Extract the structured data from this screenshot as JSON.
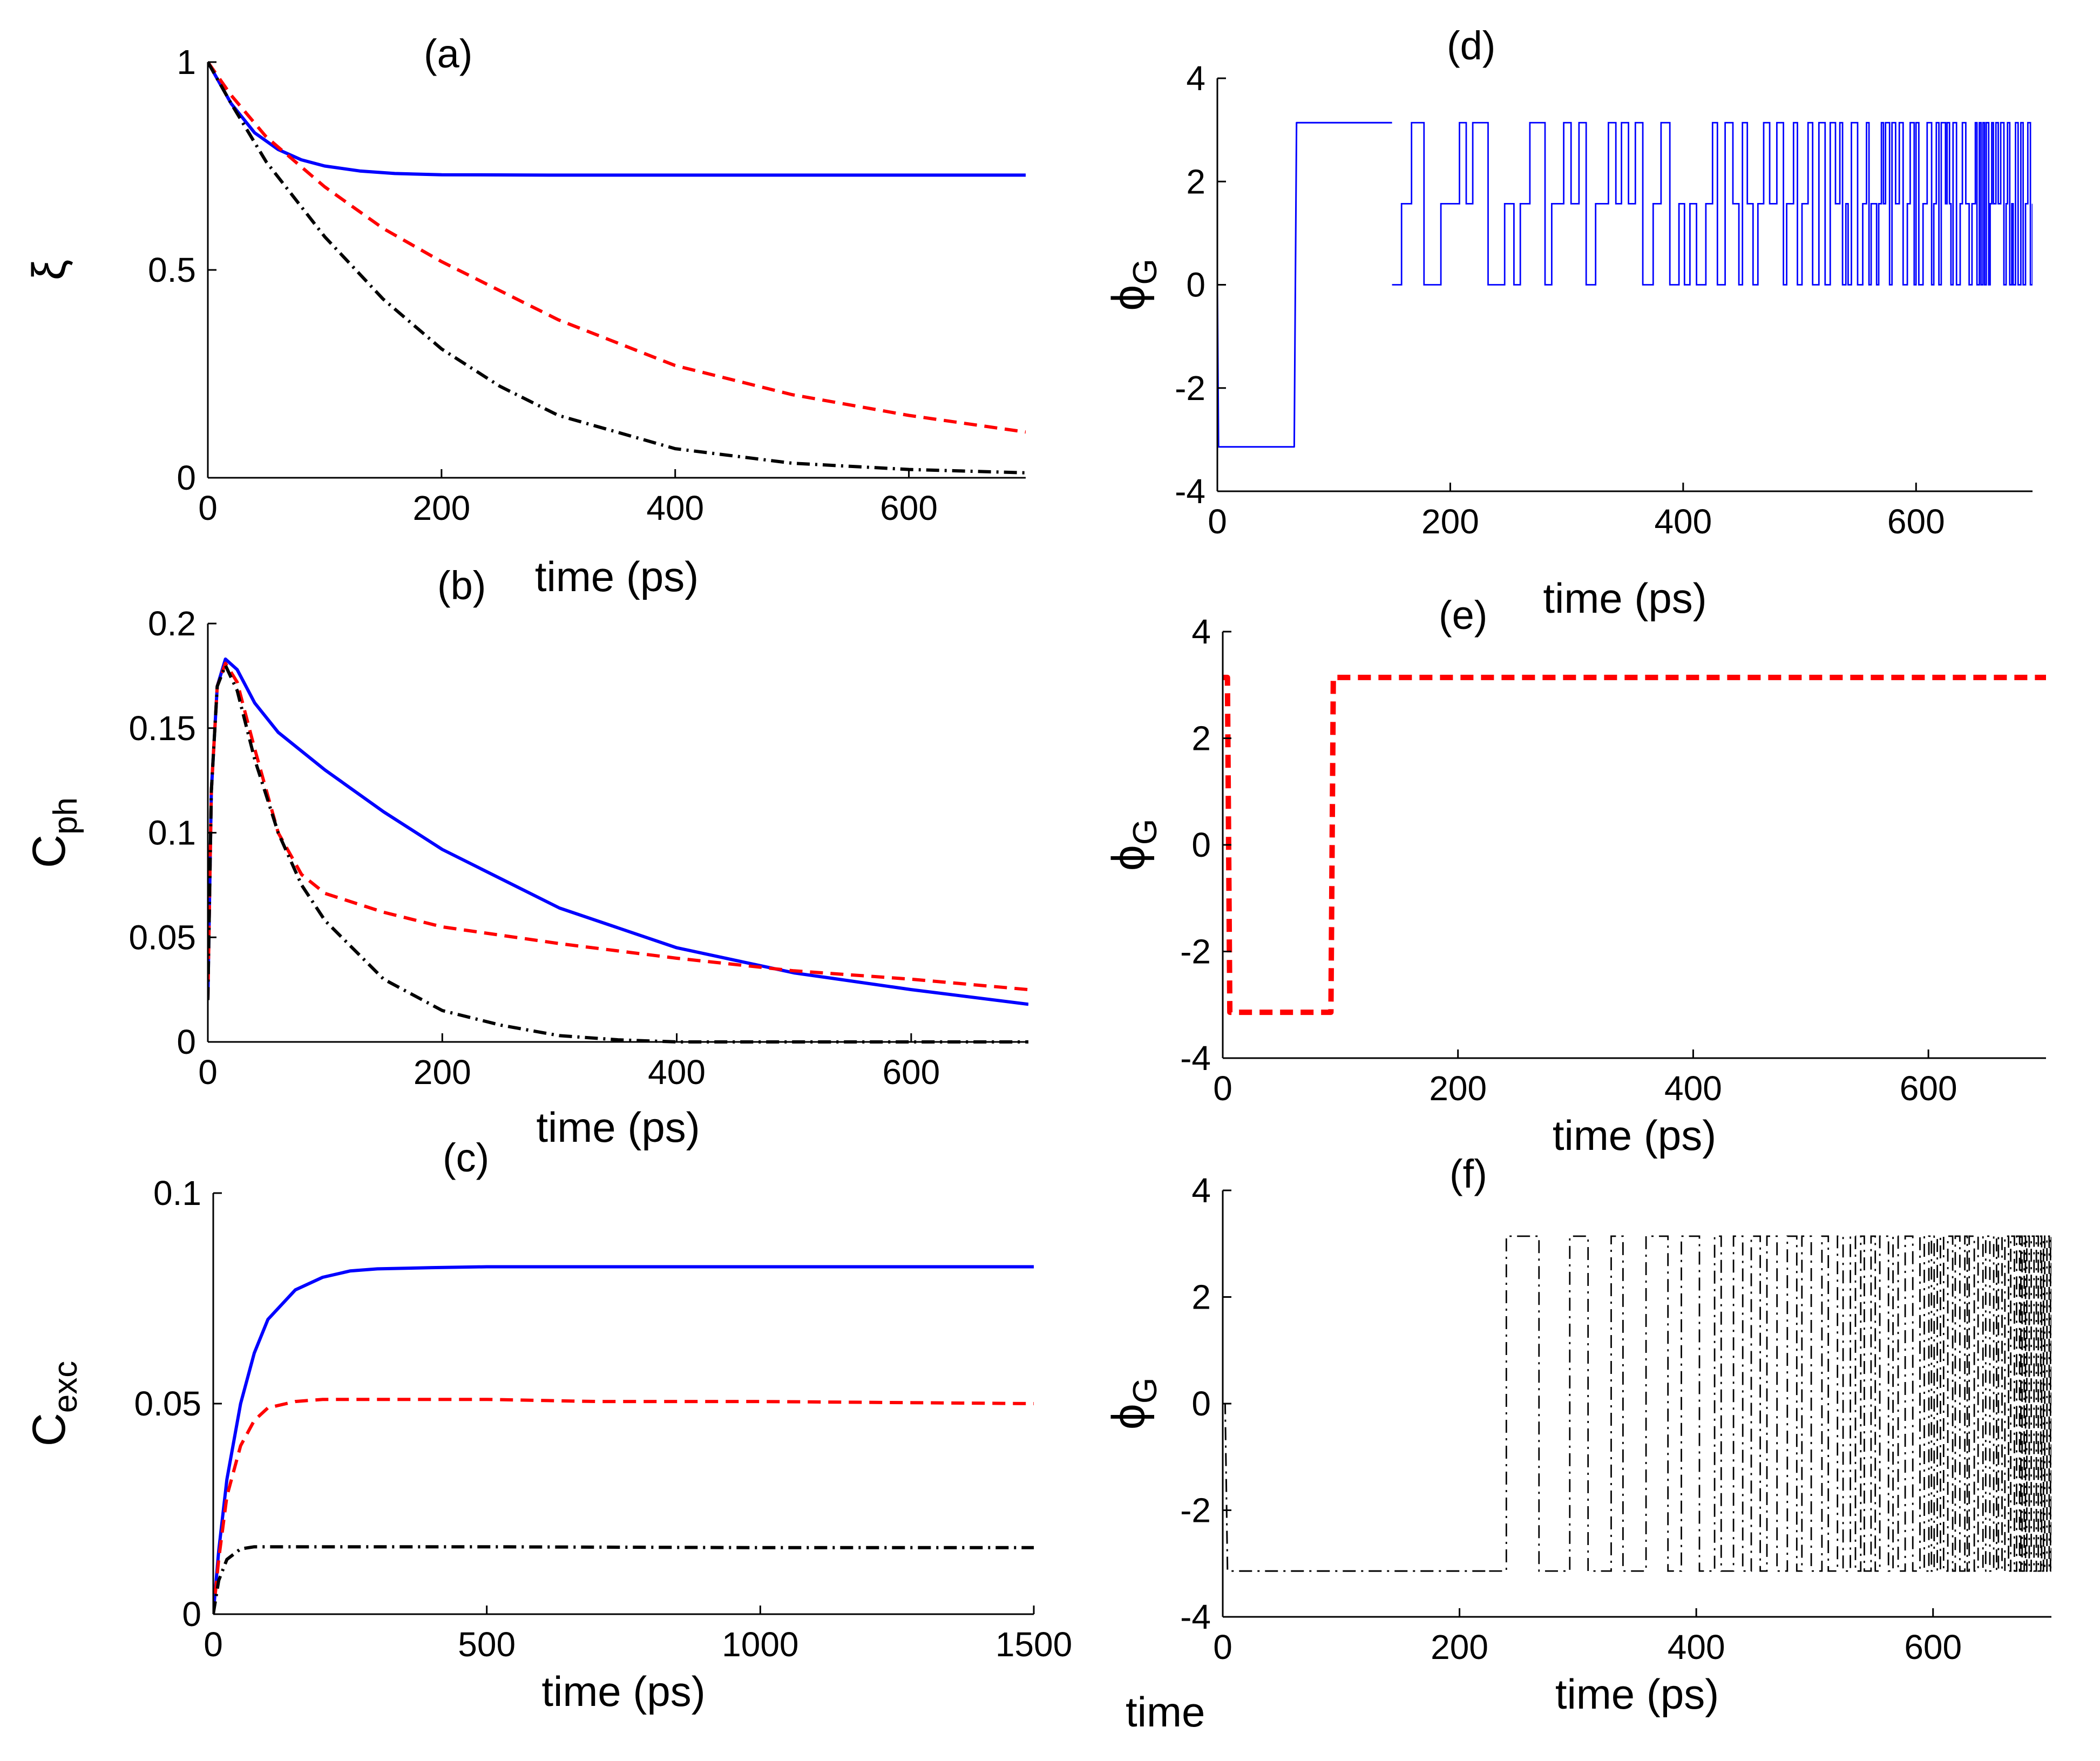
{
  "figure": {
    "stray_label": "time"
  },
  "chart_data": [
    {
      "id": "a",
      "type": "line",
      "panel_label": "(a)",
      "xlabel": "time (ps)",
      "ylabel": "ξ",
      "ylabel_sub": "",
      "xlim": [
        0,
        700
      ],
      "ylim": [
        0,
        1
      ],
      "xticks": [
        0,
        200,
        400,
        600
      ],
      "yticks": [
        0,
        0.5,
        1
      ],
      "xtick_labels": [
        "0",
        "200",
        "400",
        "600"
      ],
      "ytick_labels": [
        "0",
        "0.5",
        "1"
      ],
      "series": [
        {
          "name": "blue-solid",
          "color": "#0000ff",
          "style": "solid",
          "width": 2.4,
          "x": [
            0,
            20,
            40,
            60,
            80,
            100,
            130,
            160,
            200,
            300,
            400,
            500,
            600,
            700
          ],
          "y": [
            1,
            0.9,
            0.83,
            0.79,
            0.765,
            0.75,
            0.738,
            0.732,
            0.729,
            0.728,
            0.728,
            0.728,
            0.728,
            0.728
          ]
        },
        {
          "name": "red-dashed",
          "color": "#ff0000",
          "style": "dashed",
          "width": 2.4,
          "x": [
            0,
            20,
            50,
            100,
            150,
            200,
            300,
            400,
            500,
            600,
            700
          ],
          "y": [
            1,
            0.92,
            0.82,
            0.7,
            0.6,
            0.52,
            0.38,
            0.27,
            0.2,
            0.15,
            0.11
          ]
        },
        {
          "name": "black-dashdot",
          "color": "#000000",
          "style": "dashdot",
          "width": 2.4,
          "x": [
            0,
            20,
            50,
            100,
            150,
            200,
            250,
            300,
            400,
            500,
            600,
            700
          ],
          "y": [
            1,
            0.9,
            0.76,
            0.58,
            0.43,
            0.31,
            0.22,
            0.15,
            0.07,
            0.035,
            0.02,
            0.012
          ]
        }
      ]
    },
    {
      "id": "b",
      "type": "line",
      "panel_label": "(b)",
      "xlabel": "time (ps)",
      "ylabel": "C",
      "ylabel_sub": "ph",
      "xlim": [
        0,
        700
      ],
      "ylim": [
        0,
        0.2
      ],
      "xticks": [
        0,
        200,
        400,
        600
      ],
      "yticks": [
        0,
        0.05,
        0.1,
        0.15,
        0.2
      ],
      "xtick_labels": [
        "0",
        "200",
        "400",
        "600"
      ],
      "ytick_labels": [
        "0",
        "0.05",
        "0.1",
        "0.15",
        "0.2"
      ],
      "series": [
        {
          "name": "blue-solid",
          "color": "#0000ff",
          "style": "solid",
          "width": 2.4,
          "x": [
            0,
            3,
            8,
            15,
            25,
            40,
            60,
            100,
            150,
            200,
            300,
            400,
            500,
            600,
            700
          ],
          "y": [
            0.02,
            0.12,
            0.17,
            0.183,
            0.178,
            0.162,
            0.148,
            0.13,
            0.11,
            0.092,
            0.064,
            0.045,
            0.033,
            0.025,
            0.018
          ]
        },
        {
          "name": "red-dashed",
          "color": "#ff0000",
          "style": "dashed",
          "width": 2.4,
          "x": [
            0,
            3,
            8,
            15,
            25,
            40,
            60,
            80,
            100,
            150,
            200,
            300,
            400,
            500,
            600,
            700
          ],
          "y": [
            0.02,
            0.12,
            0.17,
            0.181,
            0.172,
            0.14,
            0.1,
            0.08,
            0.071,
            0.062,
            0.055,
            0.047,
            0.04,
            0.034,
            0.03,
            0.025
          ]
        },
        {
          "name": "black-dashdot",
          "color": "#000000",
          "style": "dashdot",
          "width": 2.4,
          "x": [
            0,
            3,
            8,
            15,
            25,
            40,
            60,
            80,
            100,
            150,
            200,
            250,
            300,
            350,
            400,
            500,
            600,
            700
          ],
          "y": [
            0.02,
            0.12,
            0.17,
            0.18,
            0.168,
            0.135,
            0.1,
            0.075,
            0.058,
            0.03,
            0.015,
            0.008,
            0.003,
            0.001,
            0,
            0,
            0,
            0
          ]
        }
      ]
    },
    {
      "id": "c",
      "type": "line",
      "panel_label": "(c)",
      "xlabel": "time (ps)",
      "ylabel": "C",
      "ylabel_sub": "exc",
      "xlim": [
        0,
        1500
      ],
      "ylim": [
        0,
        0.1
      ],
      "xticks": [
        0,
        500,
        1000,
        1500
      ],
      "yticks": [
        0,
        0.05,
        0.1
      ],
      "xtick_labels": [
        "0",
        "500",
        "1000",
        "1500"
      ],
      "ytick_labels": [
        "0",
        "0.05",
        "0.1"
      ],
      "series": [
        {
          "name": "blue-solid",
          "color": "#0000ff",
          "style": "solid",
          "width": 2.4,
          "x": [
            0,
            10,
            25,
            50,
            75,
            100,
            150,
            200,
            250,
            300,
            400,
            500,
            700,
            1000,
            1500
          ],
          "y": [
            0,
            0.015,
            0.032,
            0.05,
            0.062,
            0.07,
            0.077,
            0.08,
            0.0815,
            0.082,
            0.0823,
            0.0825,
            0.0825,
            0.0825,
            0.0825
          ]
        },
        {
          "name": "red-dashed",
          "color": "#ff0000",
          "style": "dashed",
          "width": 2.4,
          "x": [
            0,
            10,
            25,
            50,
            75,
            100,
            150,
            200,
            300,
            500,
            700,
            1000,
            1500
          ],
          "y": [
            0,
            0.013,
            0.028,
            0.04,
            0.046,
            0.049,
            0.0505,
            0.051,
            0.051,
            0.051,
            0.0505,
            0.0505,
            0.05
          ]
        },
        {
          "name": "black-dashdot",
          "color": "#000000",
          "style": "dashdot",
          "width": 2.4,
          "x": [
            0,
            10,
            25,
            50,
            75,
            100,
            200,
            500,
            1000,
            1500
          ],
          "y": [
            0,
            0.008,
            0.013,
            0.0155,
            0.016,
            0.016,
            0.016,
            0.016,
            0.0158,
            0.0158
          ]
        }
      ]
    },
    {
      "id": "d",
      "type": "line",
      "panel_label": "(d)",
      "xlabel": "time (ps)",
      "ylabel": "ϕ",
      "ylabel_sub": "G",
      "xlim": [
        0,
        700
      ],
      "ylim": [
        -4,
        4
      ],
      "xticks": [
        0,
        200,
        400,
        600
      ],
      "yticks": [
        -4,
        -2,
        0,
        2,
        4
      ],
      "xtick_labels": [
        "0",
        "200",
        "400",
        "600"
      ],
      "ytick_labels": [
        "-4",
        "-2",
        "0",
        "2",
        "4"
      ],
      "series": [
        {
          "name": "blue-thin",
          "color": "#0000ff",
          "style": "solid",
          "width": 1.2,
          "x": [
            0,
            1,
            2,
            66,
            67,
            68,
            150
          ],
          "y": [
            0,
            -3.14,
            -3.14,
            -3.14,
            0,
            3.14,
            3.14
          ]
        }
      ],
      "oscillation": {
        "color": "#0000ff",
        "style": "solid",
        "x_start": 150,
        "x_end": 700,
        "levels": [
          0,
          1.57,
          3.14
        ],
        "switch_interval_start": 15,
        "switch_interval_end": 1.5
      }
    },
    {
      "id": "e",
      "type": "line",
      "panel_label": "(e)",
      "xlabel": "time (ps)",
      "ylabel": "ϕ",
      "ylabel_sub": "G",
      "xlim": [
        0,
        700
      ],
      "ylim": [
        -4,
        4
      ],
      "xticks": [
        0,
        200,
        400,
        600
      ],
      "yticks": [
        -4,
        -2,
        0,
        2,
        4
      ],
      "xtick_labels": [
        "0",
        "200",
        "400",
        "600"
      ],
      "ytick_labels": [
        "-4",
        "-2",
        "0",
        "2",
        "4"
      ],
      "series": [
        {
          "name": "red-dashed",
          "color": "#ff0000",
          "style": "dashed",
          "width": 4,
          "x": [
            0,
            4,
            6,
            92,
            94,
            700
          ],
          "y": [
            3.14,
            3.14,
            -3.14,
            -3.14,
            3.14,
            3.14
          ]
        }
      ]
    },
    {
      "id": "f",
      "type": "line",
      "panel_label": "(f)",
      "xlabel": "time (ps)",
      "ylabel": "ϕ",
      "ylabel_sub": "G",
      "xlim": [
        0,
        700
      ],
      "ylim": [
        -4,
        4
      ],
      "xticks": [
        0,
        200,
        400,
        600
      ],
      "yticks": [
        -4,
        -2,
        0,
        2,
        4
      ],
      "xtick_labels": [
        "0",
        "200",
        "400",
        "600"
      ],
      "ytick_labels": [
        "-4",
        "-2",
        "0",
        "2",
        "4"
      ],
      "series": [
        {
          "name": "black-dashdot",
          "color": "#000000",
          "style": "dashdot",
          "width": 1.2,
          "x": [
            0,
            2,
            4,
            225
          ],
          "y": [
            0,
            0,
            -3.14,
            -3.14
          ]
        }
      ],
      "oscillation": {
        "color": "#000000",
        "style": "dashdot",
        "x_start": 225,
        "x_end": 700,
        "levels": [
          -3.14,
          3.14
        ],
        "switch_interval_start": 25,
        "switch_interval_end": 1.2
      }
    }
  ]
}
